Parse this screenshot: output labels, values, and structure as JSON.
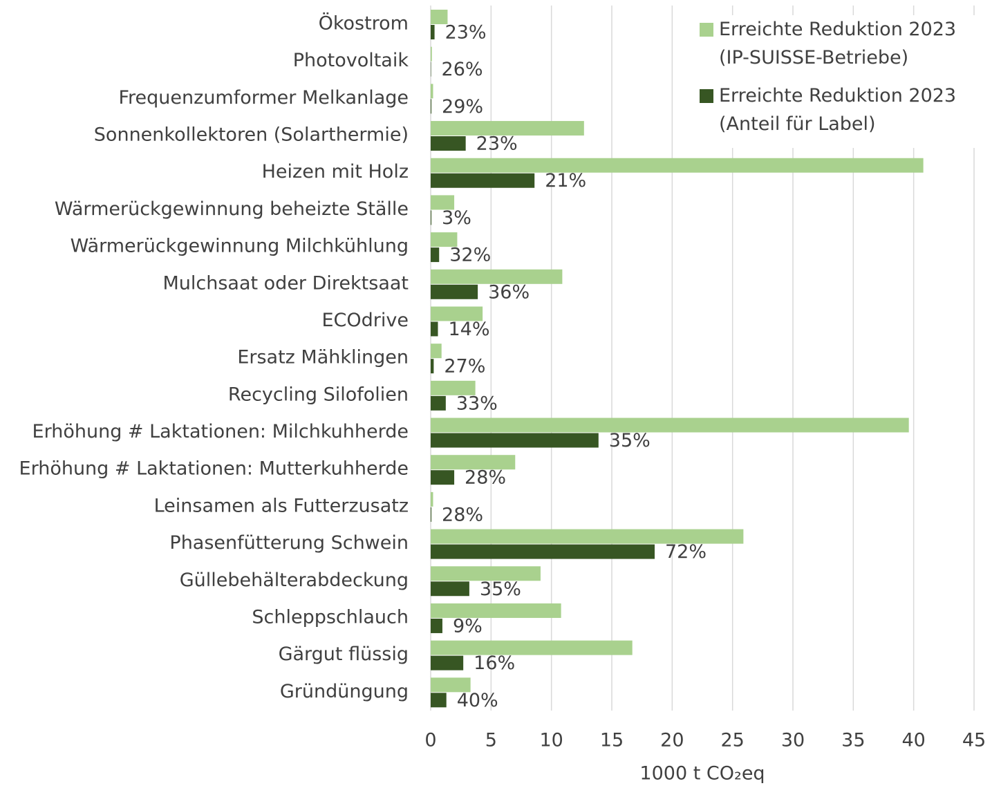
{
  "chart_data": {
    "type": "hbar",
    "x_label": "1000 t CO₂eq",
    "categories": [
      "Ökostrom",
      "Photovoltaik",
      "Frequenzumformer Melkanlage",
      "Sonnenkollektoren (Solarthermie)",
      "Heizen mit Holz",
      "Wärmerückgewinnung beheizte Ställe",
      "Wärmerückgewinnung Milchkühlung",
      "Mulchsaat oder Direktsaat",
      "ECOdrive",
      "Ersatz Mähklingen",
      "Recycling Silofolien",
      "Erhöhung # Laktationen: Milchkuhherde",
      "Erhöhung # Laktationen: Mutterkuhherde",
      "Leinsamen als Futterzusatz",
      "Phasenfütterung Schwein",
      "Güllebehälterabdeckung",
      "Schleppschlauch",
      "Gärgut flüssig",
      "Gründüngung"
    ],
    "series": [
      {
        "name": "Erreichte Reduktion 2023 (IP-SUISSE-Betriebe)",
        "color": "#a9d18e",
        "values": [
          1.4,
          0.1,
          0.2,
          12.7,
          40.8,
          1.95,
          2.2,
          10.9,
          4.3,
          0.9,
          3.7,
          39.6,
          7.0,
          0.2,
          25.9,
          9.1,
          10.8,
          16.7,
          3.3
        ]
      },
      {
        "name": "Erreichte Reduktion 2023 (Anteil für Label)",
        "color": "#375623",
        "values": [
          0.32,
          0.03,
          0.06,
          2.9,
          8.6,
          0.06,
          0.7,
          3.9,
          0.6,
          0.25,
          1.25,
          13.9,
          1.95,
          0.06,
          18.55,
          3.2,
          0.97,
          2.7,
          1.3
        ],
        "share_labels": [
          "23%",
          "26%",
          "29%",
          "23%",
          "21%",
          "3%",
          "32%",
          "36%",
          "14%",
          "27%",
          "33%",
          "35%",
          "28%",
          "28%",
          "72%",
          "35%",
          "9%",
          "16%",
          "40%"
        ]
      }
    ],
    "xlim": [
      0,
      45
    ],
    "xticks": [
      0,
      5,
      10,
      15,
      20,
      25,
      30,
      35,
      40,
      45
    ],
    "grid": true,
    "legend": "top-right"
  }
}
